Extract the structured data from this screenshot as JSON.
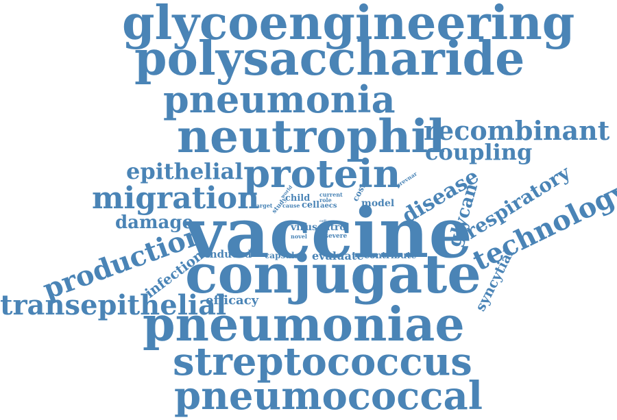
{
  "color": "#4a84b6",
  "words": [
    "glycoengineering",
    "polysaccharide",
    "pneumonia",
    "neutrophil",
    "recombinant",
    "coupling",
    "epithelial",
    "protein",
    "migration",
    "disease",
    "respiratory",
    "technology",
    "glycan",
    "damage",
    "vaccine",
    "production",
    "conjugate",
    "transepithelial",
    "pneumoniae",
    "streptococcus",
    "pneumococcal",
    "infection",
    "induced",
    "capsular",
    "evaluate",
    "contribute",
    "efficacy",
    "syncytial",
    "virus",
    "vitro",
    "novel",
    "severe",
    "model",
    "cost",
    "cell",
    "aecs",
    "child",
    "role",
    "current",
    "prevnar",
    "study",
    "world",
    "cause",
    "target",
    "cell"
  ]
}
